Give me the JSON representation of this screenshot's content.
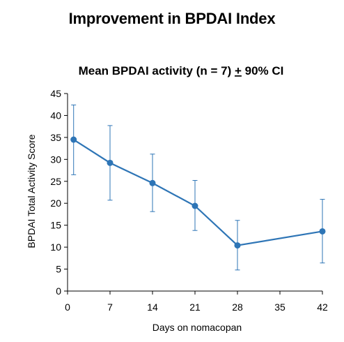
{
  "header": {
    "title": "Improvement in BPDAI Index"
  },
  "chart_data": {
    "type": "line",
    "title_main": "Mean BPDAI activity (n = 7) ",
    "title_pm": "+",
    "title_tail": " 90% CI",
    "xlabel": "Days on nomacopan",
    "ylabel": "BPDAI Total Activity Score",
    "xlim": [
      0,
      42
    ],
    "ylim": [
      0,
      45
    ],
    "xticks": [
      0,
      7,
      14,
      21,
      28,
      35,
      42
    ],
    "yticks": [
      0,
      5,
      10,
      15,
      20,
      25,
      30,
      35,
      40,
      45
    ],
    "grid": false,
    "series": [
      {
        "color": "#2E75B6",
        "x": [
          1,
          7,
          14,
          21,
          28,
          42
        ],
        "y": [
          34.5,
          29.2,
          24.6,
          19.4,
          10.4,
          13.6
        ],
        "ci_low": [
          26.5,
          20.7,
          18.1,
          13.8,
          4.8,
          6.4
        ],
        "ci_high": [
          42.4,
          37.7,
          31.2,
          25.2,
          16.1,
          20.9
        ]
      }
    ]
  }
}
